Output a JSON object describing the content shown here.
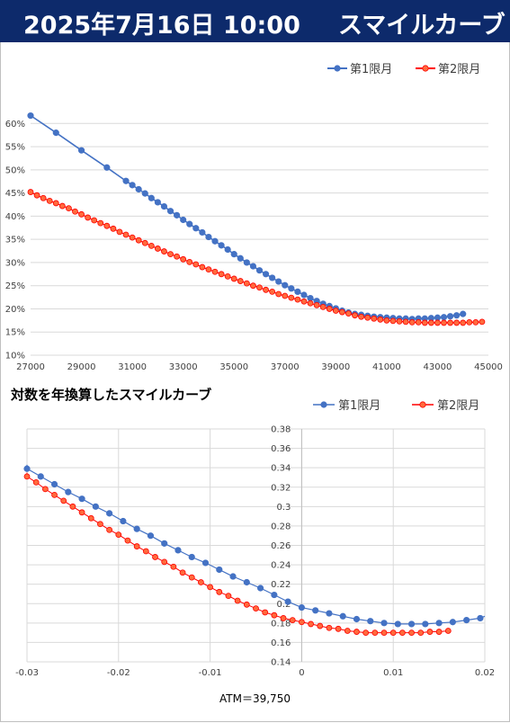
{
  "header": {
    "date": "2025年7月16日 10:00",
    "title": "スマイルカーブ"
  },
  "colors": {
    "header_bg": "#0d2a6b",
    "series1": "#4472c4",
    "series2": "#ff0000",
    "series2_fill": "#ff6a3d"
  },
  "chart_data": [
    {
      "type": "line",
      "title": "",
      "xlabel": "",
      "ylabel": "",
      "xlim": [
        27000,
        45000
      ],
      "ylim": [
        0.1,
        0.62
      ],
      "x_ticks": [
        "27000",
        "29000",
        "31000",
        "33000",
        "35000",
        "37000",
        "39000",
        "41000",
        "43000",
        "45000"
      ],
      "y_ticks": [
        "10%",
        "15%",
        "20%",
        "25%",
        "30%",
        "35%",
        "40%",
        "45%",
        "50%",
        "55%",
        "60%"
      ],
      "grid": true,
      "legend_position": "top-right",
      "series": [
        {
          "name": "第1限月",
          "points": [
            [
              27000,
              0.617
            ],
            [
              28000,
              0.58
            ],
            [
              29000,
              0.542
            ],
            [
              30000,
              0.505
            ],
            [
              30750,
              0.476
            ],
            [
              31000,
              0.467
            ],
            [
              31250,
              0.458
            ],
            [
              31500,
              0.449
            ],
            [
              31750,
              0.439
            ],
            [
              32000,
              0.43
            ],
            [
              32250,
              0.421
            ],
            [
              32500,
              0.411
            ],
            [
              32750,
              0.402
            ],
            [
              33000,
              0.392
            ],
            [
              33250,
              0.383
            ],
            [
              33500,
              0.374
            ],
            [
              33750,
              0.365
            ],
            [
              34000,
              0.355
            ],
            [
              34250,
              0.346
            ],
            [
              34500,
              0.337
            ],
            [
              34750,
              0.328
            ],
            [
              35000,
              0.318
            ],
            [
              35250,
              0.309
            ],
            [
              35500,
              0.3
            ],
            [
              35750,
              0.292
            ],
            [
              36000,
              0.283
            ],
            [
              36250,
              0.275
            ],
            [
              36500,
              0.267
            ],
            [
              36750,
              0.259
            ],
            [
              37000,
              0.251
            ],
            [
              37250,
              0.244
            ],
            [
              37500,
              0.237
            ],
            [
              37750,
              0.23
            ],
            [
              38000,
              0.223
            ],
            [
              38250,
              0.217
            ],
            [
              38500,
              0.211
            ],
            [
              38750,
              0.206
            ],
            [
              39000,
              0.201
            ],
            [
              39250,
              0.196
            ],
            [
              39500,
              0.192
            ],
            [
              39750,
              0.189
            ],
            [
              40000,
              0.187
            ],
            [
              40250,
              0.185
            ],
            [
              40500,
              0.183
            ],
            [
              40750,
              0.182
            ],
            [
              41000,
              0.181
            ],
            [
              41250,
              0.18
            ],
            [
              41500,
              0.179
            ],
            [
              41750,
              0.179
            ],
            [
              42000,
              0.178
            ],
            [
              42250,
              0.179
            ],
            [
              42500,
              0.179
            ],
            [
              42750,
              0.18
            ],
            [
              43000,
              0.181
            ],
            [
              43250,
              0.182
            ],
            [
              43500,
              0.184
            ],
            [
              43750,
              0.186
            ],
            [
              44000,
              0.189
            ]
          ]
        },
        {
          "name": "第2限月",
          "points": [
            [
              27000,
              0.452
            ],
            [
              27250,
              0.445
            ],
            [
              27500,
              0.439
            ],
            [
              27750,
              0.433
            ],
            [
              28000,
              0.428
            ],
            [
              28250,
              0.422
            ],
            [
              28500,
              0.417
            ],
            [
              28750,
              0.41
            ],
            [
              29000,
              0.404
            ],
            [
              29250,
              0.397
            ],
            [
              29500,
              0.391
            ],
            [
              29750,
              0.385
            ],
            [
              30000,
              0.379
            ],
            [
              30250,
              0.373
            ],
            [
              30500,
              0.366
            ],
            [
              30750,
              0.36
            ],
            [
              31000,
              0.354
            ],
            [
              31250,
              0.348
            ],
            [
              31500,
              0.342
            ],
            [
              31750,
              0.336
            ],
            [
              32000,
              0.33
            ],
            [
              32250,
              0.324
            ],
            [
              32500,
              0.318
            ],
            [
              32750,
              0.313
            ],
            [
              33000,
              0.307
            ],
            [
              33250,
              0.301
            ],
            [
              33500,
              0.296
            ],
            [
              33750,
              0.29
            ],
            [
              34000,
              0.285
            ],
            [
              34250,
              0.28
            ],
            [
              34500,
              0.275
            ],
            [
              34750,
              0.27
            ],
            [
              35000,
              0.265
            ],
            [
              35250,
              0.26
            ],
            [
              35500,
              0.255
            ],
            [
              35750,
              0.25
            ],
            [
              36000,
              0.246
            ],
            [
              36250,
              0.241
            ],
            [
              36500,
              0.237
            ],
            [
              36750,
              0.232
            ],
            [
              37000,
              0.228
            ],
            [
              37250,
              0.224
            ],
            [
              37500,
              0.22
            ],
            [
              37750,
              0.216
            ],
            [
              38000,
              0.212
            ],
            [
              38250,
              0.208
            ],
            [
              38500,
              0.204
            ],
            [
              38750,
              0.2
            ],
            [
              39000,
              0.196
            ],
            [
              39250,
              0.193
            ],
            [
              39500,
              0.19
            ],
            [
              39750,
              0.186
            ],
            [
              40000,
              0.183
            ],
            [
              40250,
              0.181
            ],
            [
              40500,
              0.179
            ],
            [
              40750,
              0.177
            ],
            [
              41000,
              0.175
            ],
            [
              41250,
              0.174
            ],
            [
              41500,
              0.173
            ],
            [
              41750,
              0.172
            ],
            [
              42000,
              0.171
            ],
            [
              42250,
              0.171
            ],
            [
              42500,
              0.17
            ],
            [
              42750,
              0.17
            ],
            [
              43000,
              0.17
            ],
            [
              43250,
              0.17
            ],
            [
              43500,
              0.17
            ],
            [
              43750,
              0.17
            ],
            [
              44000,
              0.17
            ],
            [
              44250,
              0.171
            ],
            [
              44500,
              0.171
            ],
            [
              44750,
              0.172
            ]
          ]
        }
      ]
    },
    {
      "type": "scatter",
      "title": "対数を年換算したスマイルカーブ",
      "xlabel": "ATM＝39,750",
      "ylabel": "",
      "xlim": [
        -0.03,
        0.02
      ],
      "ylim": [
        0.14,
        0.38
      ],
      "x_ticks": [
        "-0.03",
        "-0.02",
        "-0.01",
        "0",
        "0.01",
        "0.02"
      ],
      "y_ticks": [
        "0.14",
        "0.16",
        "0.18",
        "0.2",
        "0.22",
        "0.24",
        "0.26",
        "0.28",
        "0.3",
        "0.32",
        "0.34",
        "0.36",
        "0.38"
      ],
      "grid": true,
      "legend_position": "top-right",
      "series": [
        {
          "name": "第1限月",
          "points": [
            [
              -0.03,
              0.339
            ],
            [
              -0.0285,
              0.331
            ],
            [
              -0.027,
              0.323
            ],
            [
              -0.0255,
              0.315
            ],
            [
              -0.024,
              0.308
            ],
            [
              -0.0225,
              0.3
            ],
            [
              -0.021,
              0.293
            ],
            [
              -0.0195,
              0.285
            ],
            [
              -0.018,
              0.277
            ],
            [
              -0.0165,
              0.27
            ],
            [
              -0.015,
              0.262
            ],
            [
              -0.0135,
              0.255
            ],
            [
              -0.012,
              0.248
            ],
            [
              -0.0105,
              0.242
            ],
            [
              -0.009,
              0.235
            ],
            [
              -0.0075,
              0.228
            ],
            [
              -0.006,
              0.222
            ],
            [
              -0.0045,
              0.216
            ],
            [
              -0.003,
              0.209
            ],
            [
              -0.0015,
              0.202
            ],
            [
              0.0,
              0.196
            ],
            [
              0.0015,
              0.193
            ],
            [
              0.003,
              0.19
            ],
            [
              0.0045,
              0.187
            ],
            [
              0.006,
              0.184
            ],
            [
              0.0075,
              0.182
            ],
            [
              0.009,
              0.18
            ],
            [
              0.0105,
              0.179
            ],
            [
              0.012,
              0.179
            ],
            [
              0.0135,
              0.179
            ],
            [
              0.015,
              0.18
            ],
            [
              0.0165,
              0.181
            ],
            [
              0.018,
              0.183
            ],
            [
              0.0195,
              0.185
            ]
          ]
        },
        {
          "name": "第2限月",
          "points": [
            [
              -0.03,
              0.331
            ],
            [
              -0.029,
              0.325
            ],
            [
              -0.028,
              0.318
            ],
            [
              -0.027,
              0.312
            ],
            [
              -0.026,
              0.306
            ],
            [
              -0.025,
              0.3
            ],
            [
              -0.024,
              0.294
            ],
            [
              -0.023,
              0.288
            ],
            [
              -0.022,
              0.282
            ],
            [
              -0.021,
              0.276
            ],
            [
              -0.02,
              0.271
            ],
            [
              -0.019,
              0.265
            ],
            [
              -0.018,
              0.259
            ],
            [
              -0.017,
              0.254
            ],
            [
              -0.016,
              0.248
            ],
            [
              -0.015,
              0.243
            ],
            [
              -0.014,
              0.238
            ],
            [
              -0.013,
              0.232
            ],
            [
              -0.012,
              0.227
            ],
            [
              -0.011,
              0.222
            ],
            [
              -0.01,
              0.217
            ],
            [
              -0.009,
              0.212
            ],
            [
              -0.008,
              0.208
            ],
            [
              -0.007,
              0.203
            ],
            [
              -0.006,
              0.199
            ],
            [
              -0.005,
              0.195
            ],
            [
              -0.004,
              0.191
            ],
            [
              -0.003,
              0.188
            ],
            [
              -0.002,
              0.185
            ],
            [
              -0.001,
              0.183
            ],
            [
              0.0,
              0.181
            ],
            [
              0.001,
              0.179
            ],
            [
              0.002,
              0.177
            ],
            [
              0.003,
              0.175
            ],
            [
              0.004,
              0.174
            ],
            [
              0.005,
              0.172
            ],
            [
              0.006,
              0.171
            ],
            [
              0.007,
              0.17
            ],
            [
              0.008,
              0.17
            ],
            [
              0.009,
              0.17
            ],
            [
              0.01,
              0.17
            ],
            [
              0.011,
              0.17
            ],
            [
              0.012,
              0.17
            ],
            [
              0.013,
              0.17
            ],
            [
              0.014,
              0.171
            ],
            [
              0.015,
              0.171
            ],
            [
              0.016,
              0.172
            ]
          ]
        }
      ]
    }
  ]
}
